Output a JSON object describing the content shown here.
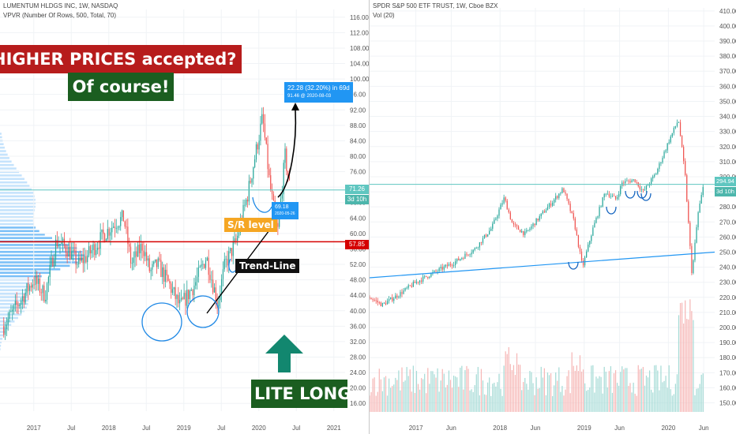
{
  "left": {
    "title": "LUMENTUM HLDGS INC, 1W, NASDAQ",
    "indicator": "VPVR (Number Of Rows, 500, Total, 70)",
    "price_badge": "71.26",
    "time_badge": "3d 10h",
    "level_badge": "57.85",
    "callout_top_1": "22.28 (32.20%) in 69d",
    "callout_top_2": "91.46 @ 2020-08-03",
    "callout_bottom_1": "69.18",
    "callout_bottom_2": "2020-05-26",
    "headline": "HIGHER PRICES accepted?",
    "subhead": "Of course!",
    "sr_label": "S/R level",
    "trend_label": "Trend-Line",
    "footer_label": "LITE LONG",
    "colors": {
      "up": "#26a69a",
      "down": "#ef5350",
      "red_banner": "#b71c1c",
      "green_banner": "#1b5e20",
      "orange": "#f5a623",
      "blue": "#2196f3",
      "sr_line": "#d50000",
      "hline": "#5fc6c0",
      "arrow": "#12876f"
    }
  },
  "right": {
    "title": "SPDR S&P 500 ETF TRUST, 1W, Cboe BZX",
    "indicator": "Vol (20)",
    "price_badge": "294.94",
    "time_badge": "3d 10h",
    "colors": {
      "up": "#26a69a",
      "down": "#ef5350",
      "trend": "#2196f3",
      "hline": "#5fc6c0",
      "circles": "#1565c0"
    }
  },
  "chart_data": [
    {
      "type": "candlestick",
      "title": "LUMENTUM HLDGS INC, 1W, NASDAQ",
      "x_ticks": [
        "2017",
        "Jul",
        "2018",
        "Jul",
        "2019",
        "Jul",
        "2020",
        "Jul",
        "2021"
      ],
      "y_ticks": [
        16,
        20,
        24,
        28,
        32,
        36,
        40,
        44,
        48,
        52,
        56,
        60,
        64,
        68,
        72,
        76,
        80,
        84,
        88,
        92,
        96,
        100,
        104,
        108,
        112,
        116
      ],
      "ylim": [
        14,
        118
      ],
      "path": [
        [
          2016.6,
          36
        ],
        [
          2016.8,
          42
        ],
        [
          2017.0,
          48
        ],
        [
          2017.15,
          44
        ],
        [
          2017.3,
          58
        ],
        [
          2017.45,
          56
        ],
        [
          2017.6,
          52
        ],
        [
          2017.75,
          55
        ],
        [
          2017.95,
          60
        ],
        [
          2018.1,
          63
        ],
        [
          2018.2,
          64
        ],
        [
          2018.3,
          52
        ],
        [
          2018.45,
          57
        ],
        [
          2018.55,
          50
        ],
        [
          2018.65,
          52
        ],
        [
          2018.8,
          47
        ],
        [
          2018.95,
          41
        ],
        [
          2019.05,
          44
        ],
        [
          2019.15,
          47
        ],
        [
          2019.3,
          54
        ],
        [
          2019.45,
          42
        ],
        [
          2019.55,
          52
        ],
        [
          2019.7,
          58
        ],
        [
          2019.85,
          70
        ],
        [
          2019.95,
          80
        ],
        [
          2020.05,
          90
        ],
        [
          2020.15,
          72
        ],
        [
          2020.25,
          60
        ],
        [
          2020.35,
          80
        ],
        [
          2020.42,
          71
        ]
      ],
      "lines": {
        "resistance": 71.26,
        "sr_level": 57.85
      },
      "projection": {
        "from": 69.18,
        "from_date": "2020-05-26",
        "to": 91.46,
        "to_date": "2020-08-03",
        "change": "22.28 (32.20%) in 69d"
      }
    },
    {
      "type": "candlestick",
      "title": "SPDR S&P 500 ETF TRUST, 1W, Cboe BZX",
      "x_ticks": [
        "2017",
        "Jun",
        "2018",
        "Jun",
        "2019",
        "Jun",
        "2020",
        "Jun"
      ],
      "y_ticks": [
        150,
        160,
        170,
        180,
        190,
        200,
        210,
        220,
        230,
        240,
        250,
        260,
        270,
        280,
        290,
        300,
        310,
        320,
        330,
        340,
        350,
        360,
        370,
        380,
        390,
        400,
        410
      ],
      "ylim": [
        144,
        412
      ],
      "path": [
        [
          2016.45,
          220
        ],
        [
          2016.6,
          215
        ],
        [
          2016.8,
          222
        ],
        [
          2017.0,
          230
        ],
        [
          2017.2,
          236
        ],
        [
          2017.45,
          243
        ],
        [
          2017.7,
          252
        ],
        [
          2017.9,
          266
        ],
        [
          2018.05,
          286
        ],
        [
          2018.15,
          268
        ],
        [
          2018.3,
          262
        ],
        [
          2018.45,
          272
        ],
        [
          2018.6,
          282
        ],
        [
          2018.75,
          292
        ],
        [
          2018.88,
          270
        ],
        [
          2018.98,
          240
        ],
        [
          2019.1,
          265
        ],
        [
          2019.25,
          290
        ],
        [
          2019.38,
          285
        ],
        [
          2019.45,
          296
        ],
        [
          2019.6,
          298
        ],
        [
          2019.7,
          290
        ],
        [
          2019.85,
          302
        ],
        [
          2020.0,
          323
        ],
        [
          2020.12,
          338
        ],
        [
          2020.2,
          300
        ],
        [
          2020.28,
          235
        ],
        [
          2020.35,
          275
        ],
        [
          2020.42,
          295
        ]
      ],
      "volume_ylim": [
        0,
        1
      ],
      "lines": {
        "last_price": 294.94
      },
      "trend_line": [
        [
          2016.45,
          233
        ],
        [
          2020.55,
          250
        ]
      ]
    }
  ]
}
